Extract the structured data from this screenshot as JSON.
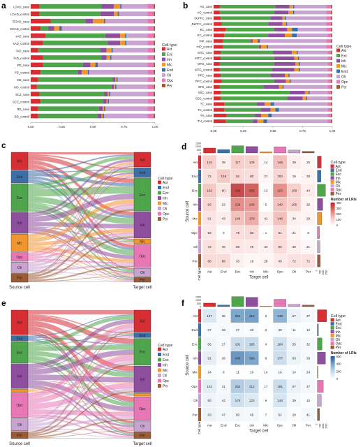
{
  "cell_types": [
    "Ast",
    "Exc",
    "Inh",
    "Mic",
    "End",
    "Oli",
    "Opc",
    "Per"
  ],
  "cell_type_colors": {
    "Ast": "#d62e33",
    "End": "#3c6ea8",
    "Exc": "#4fa54b",
    "Inh": "#8e4f9e",
    "Mic": "#f0962e",
    "Oli": "#c9a3d1",
    "Opc": "#e877b6",
    "Per": "#9c5a35"
  },
  "panels": {
    "a": {
      "label": "a",
      "legend_title": "Cell type",
      "legend_items": [
        "Ast",
        "Exc",
        "Inh",
        "Mic",
        "End",
        "Oli",
        "Opc",
        "Per"
      ]
    },
    "b": {
      "label": "b",
      "legend_title": "Cell type",
      "legend_items": [
        "Ast",
        "Exc",
        "Inh",
        "Mic",
        "End",
        "Oli",
        "Opc",
        "Per"
      ]
    },
    "c": {
      "label": "c",
      "legend_title": "Cell type",
      "legend_items": [
        "Ast",
        "End",
        "Exc",
        "Inh",
        "Mic",
        "Oli",
        "Opc",
        "Per"
      ],
      "source_label": "Source cell",
      "target_label": "Target cell"
    },
    "d": {
      "label": "d",
      "legend_title": "Cell type",
      "legend_items": [
        "Ast",
        "End",
        "Exc",
        "Inh",
        "Mic",
        "Oli",
        "Opc",
        "Per"
      ],
      "color_title": "Number of LRIs",
      "color_ticks": [
        "400",
        "300",
        "200",
        "100",
        "0"
      ],
      "xlabel": "Target cell",
      "ylabel": "Source cell",
      "corner_label": "Cell type"
    },
    "e": {
      "label": "e",
      "legend_title": "Cell type",
      "legend_items": [
        "Ast",
        "End",
        "Exc",
        "Inh",
        "Mic",
        "Oli",
        "Opc",
        "Per"
      ],
      "source_label": "Source cell",
      "target_label": "Target cell"
    },
    "f": {
      "label": "f",
      "legend_title": "Cell type",
      "legend_items": [
        "Ast",
        "End",
        "Exc",
        "Inh",
        "Mic",
        "Oli",
        "Opc",
        "Per"
      ],
      "color_title": "Number of LRIs",
      "color_ticks": [
        "600",
        "400",
        "200",
        "0"
      ],
      "xlabel": "Target cell",
      "ylabel": "Source cell",
      "corner_label": "Cell type"
    }
  },
  "chart_data": [
    {
      "panel": "a",
      "type": "bar",
      "orientation": "horizontal",
      "stacked": "percent",
      "categories": [
        "LOAD_case",
        "LOAD_control",
        "EOAD_case",
        "EOAD_control",
        "sAD_case",
        "sAD_control",
        "fAD_case",
        "fAD_control",
        "PD_case",
        "PD_control",
        "MS_case",
        "MS_control",
        "SCZ_case",
        "SCZ_control",
        "BD_case",
        "BD_control"
      ],
      "stack_order": [
        "Ast",
        "Exc",
        "Inh",
        "Mic",
        "End",
        "Oli",
        "Opc",
        "Per"
      ],
      "rows": [
        [
          0.07,
          0.5,
          0.1,
          0.05,
          0.01,
          0.21,
          0.05,
          0.01
        ],
        [
          0.07,
          0.49,
          0.11,
          0.03,
          0.01,
          0.23,
          0.05,
          0.01
        ],
        [
          0.16,
          0.28,
          0.06,
          0.09,
          0.01,
          0.34,
          0.05,
          0.01
        ],
        [
          0.08,
          0.06,
          0.05,
          0.04,
          0.02,
          0.69,
          0.05,
          0.01
        ],
        [
          0.12,
          0.48,
          0.12,
          0.04,
          0.01,
          0.17,
          0.05,
          0.01
        ],
        [
          0.1,
          0.52,
          0.1,
          0.04,
          0.01,
          0.17,
          0.05,
          0.01
        ],
        [
          0.06,
          0.5,
          0.05,
          0.04,
          0.01,
          0.28,
          0.05,
          0.01
        ],
        [
          0.1,
          0.47,
          0.04,
          0.03,
          0.01,
          0.29,
          0.05,
          0.01
        ],
        [
          0.1,
          0.32,
          0.06,
          0.04,
          0.02,
          0.4,
          0.05,
          0.01
        ],
        [
          0.08,
          0.3,
          0.03,
          0.05,
          0.01,
          0.47,
          0.05,
          0.01
        ],
        [
          0.06,
          0.6,
          0.02,
          0.01,
          0.01,
          0.24,
          0.05,
          0.01
        ],
        [
          0.05,
          0.6,
          0.02,
          0.01,
          0.01,
          0.25,
          0.05,
          0.01
        ],
        [
          0.07,
          0.52,
          0.03,
          0.01,
          0.01,
          0.3,
          0.05,
          0.01
        ],
        [
          0.08,
          0.5,
          0.03,
          0.01,
          0.01,
          0.31,
          0.05,
          0.01
        ],
        [
          0.06,
          0.49,
          0.03,
          0.01,
          0.01,
          0.34,
          0.05,
          0.01
        ],
        [
          0.06,
          0.48,
          0.03,
          0.01,
          0.01,
          0.35,
          0.05,
          0.01
        ]
      ],
      "xticks": [
        "0.00",
        "0.25",
        "0.50",
        "0.75",
        "1.00"
      ],
      "xlim": [
        0,
        1
      ]
    },
    {
      "panel": "b",
      "type": "bar",
      "orientation": "horizontal",
      "stacked": "percent",
      "categories": [
        "AG_case",
        "AG_control",
        "DLPFC_case",
        "DLPFC_control",
        "EC_case",
        "EC_control",
        "HIP_case",
        "HIP_control",
        "MTC_case",
        "MTC_control",
        "MTG_case",
        "MTG_control",
        "PFC_case",
        "PFC_control",
        "SFG_case",
        "SSC_case",
        "SSC_control",
        "TC_case",
        "TC_control",
        "TH_case",
        "TH_control"
      ],
      "stack_order": [
        "Ast",
        "Exc",
        "Inh",
        "Mic",
        "End",
        "Oli",
        "Opc",
        "Per"
      ],
      "rows": [
        [
          0.05,
          0.47,
          0.12,
          0.03,
          0.01,
          0.27,
          0.04,
          0.01
        ],
        [
          0.05,
          0.46,
          0.12,
          0.04,
          0.01,
          0.27,
          0.04,
          0.01
        ],
        [
          0.06,
          0.42,
          0.1,
          0.02,
          0.01,
          0.34,
          0.04,
          0.01
        ],
        [
          0.07,
          0.39,
          0.12,
          0.03,
          0.01,
          0.33,
          0.04,
          0.01
        ],
        [
          0.1,
          0.41,
          0.11,
          0.04,
          0.05,
          0.24,
          0.04,
          0.01
        ],
        [
          0.09,
          0.37,
          0.14,
          0.06,
          0.04,
          0.26,
          0.03,
          0.01
        ],
        [
          0.08,
          0.23,
          0.02,
          0.04,
          0.02,
          0.56,
          0.04,
          0.01
        ],
        [
          0.08,
          0.3,
          0.02,
          0.05,
          0.01,
          0.49,
          0.04,
          0.01
        ],
        [
          0.06,
          0.44,
          0.16,
          0.04,
          0.01,
          0.25,
          0.03,
          0.01
        ],
        [
          0.06,
          0.45,
          0.17,
          0.03,
          0.01,
          0.24,
          0.03,
          0.01
        ],
        [
          0.05,
          0.46,
          0.18,
          0.03,
          0.01,
          0.23,
          0.03,
          0.01
        ],
        [
          0.05,
          0.44,
          0.19,
          0.04,
          0.01,
          0.23,
          0.03,
          0.01
        ],
        [
          0.06,
          0.42,
          0.12,
          0.03,
          0.01,
          0.32,
          0.03,
          0.01
        ],
        [
          0.07,
          0.44,
          0.1,
          0.03,
          0.01,
          0.31,
          0.03,
          0.01
        ],
        [
          0.05,
          0.37,
          0.13,
          0.03,
          0.01,
          0.37,
          0.03,
          0.01
        ],
        [
          0.06,
          0.58,
          0.13,
          0.03,
          0.01,
          0.15,
          0.03,
          0.01
        ],
        [
          0.06,
          0.56,
          0.13,
          0.03,
          0.01,
          0.17,
          0.03,
          0.01
        ],
        [
          0.09,
          0.27,
          0.07,
          0.05,
          0.03,
          0.45,
          0.03,
          0.01
        ],
        [
          0.09,
          0.31,
          0.08,
          0.04,
          0.03,
          0.41,
          0.03,
          0.01
        ],
        [
          0.11,
          0.24,
          0.05,
          0.06,
          0.03,
          0.47,
          0.03,
          0.01
        ],
        [
          0.1,
          0.23,
          0.04,
          0.05,
          0.03,
          0.51,
          0.03,
          0.01
        ]
      ],
      "xticks": [
        "0.00",
        "0.25",
        "0.50",
        "0.75",
        "1.00"
      ],
      "xlim": [
        0,
        1
      ]
    },
    {
      "panel": "c",
      "type": "sankey",
      "nodes": [
        "Ast",
        "End",
        "Exc",
        "Inh",
        "Mic",
        "Opc",
        "Oli",
        "Per"
      ],
      "source_totals": [
        1.0,
        0.7,
        1.6,
        1.2,
        1.0,
        0.5,
        0.6,
        0.5
      ],
      "target_totals": [
        0.9,
        0.6,
        2.0,
        1.6,
        0.3,
        1.4,
        0.5,
        0.3
      ]
    },
    {
      "panel": "d",
      "type": "heatmap",
      "rows": [
        "Ast",
        "End",
        "Exc",
        "Inh",
        "Mic",
        "Opc",
        "Oli",
        "Per"
      ],
      "cols": [
        "Ast",
        "End",
        "Exc",
        "Inh",
        "Mic",
        "Opc",
        "Oli",
        "Per"
      ],
      "values": [
        [
          115,
          38,
          117,
          108,
          14,
          148,
          39,
          20
        ],
        [
          72,
          126,
          92,
          80,
          27,
          100,
          18,
          28
        ],
        [
          132,
          60,
          344,
          305,
          13,
          225,
          109,
          44
        ],
        [
          93,
          23,
          229,
          209,
          5,
          140,
          105,
          26
        ],
        [
          61,
          43,
          146,
          179,
          41,
          146,
          34,
          29
        ],
        [
          53,
          3,
          79,
          83,
          1,
          81,
          21,
          3
        ],
        [
          72,
          46,
          59,
          49,
          33,
          80,
          39,
          21
        ],
        [
          86,
          86,
          33,
          19,
          28,
          49,
          72,
          72
        ]
      ],
      "vmin": 0,
      "vmax": 400,
      "top_bar_ticks": [
        "1500",
        "1000",
        "500",
        "0"
      ],
      "top_bar_values": [
        750,
        520,
        1100,
        980,
        170,
        950,
        440,
        240
      ],
      "side_bar_ticks": [
        "0",
        "500",
        "1000",
        "1500"
      ],
      "side_bar_values": [
        600,
        540,
        1240,
        830,
        680,
        320,
        400,
        450
      ]
    },
    {
      "panel": "e",
      "type": "sankey",
      "nodes": [
        "Ast",
        "End",
        "Exc",
        "Inh",
        "Mic",
        "Opc",
        "Oli",
        "Per"
      ],
      "source_totals": [
        1.4,
        0.3,
        1.2,
        1.4,
        0.15,
        1.4,
        0.7,
        0.4
      ],
      "target_totals": [
        1.3,
        0.3,
        1.6,
        1.6,
        0.15,
        1.4,
        0.6,
        0.4
      ]
    },
    {
      "panel": "f",
      "type": "heatmap",
      "rows": [
        "Ast",
        "End",
        "Exc",
        "Inh",
        "Mic",
        "Opc",
        "Oli",
        "Per"
      ],
      "cols": [
        "Ast",
        "End",
        "Exc",
        "Inh",
        "Mic",
        "Opc",
        "Oli",
        "Per"
      ],
      "values": [
        [
          127,
          36,
          394,
          412,
          6,
          346,
          67,
          37
        ],
        [
          27,
          33,
          27,
          20,
          3,
          30,
          11,
          12
        ],
        [
          56,
          27,
          181,
          195,
          4,
          164,
          55,
          32
        ],
        [
          91,
          26,
          440,
          396,
          8,
          177,
          63,
          33
        ],
        [
          24,
          6,
          11,
          10,
          14,
          16,
          14,
          24
        ],
        [
          102,
          31,
          252,
          212,
          17,
          191,
          67,
          37
        ],
        [
          60,
          43,
          174,
          120,
          6,
          143,
          39,
          15
        ],
        [
          63,
          47,
          50,
          45,
          7,
          52,
          20,
          41
        ]
      ],
      "vmin": 0,
      "vmax": 600,
      "top_bar_ticks": [
        "1500",
        "1000",
        "500",
        "0"
      ],
      "top_bar_values": [
        540,
        250,
        1540,
        1420,
        65,
        1120,
        340,
        230
      ],
      "side_bar_ticks": [
        "0",
        "500",
        "1000",
        "1500"
      ],
      "side_bar_values": [
        1430,
        160,
        720,
        1240,
        120,
        910,
        600,
        330
      ]
    }
  ]
}
